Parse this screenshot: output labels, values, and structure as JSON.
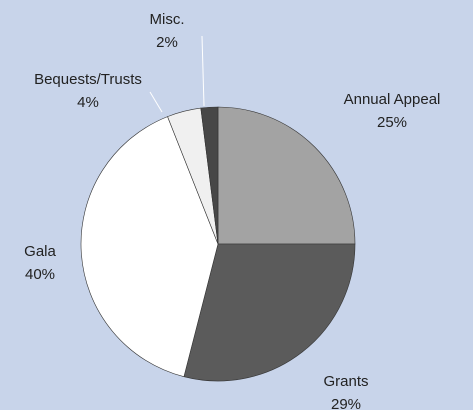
{
  "chart_data": {
    "type": "pie",
    "categories": [
      "Annual Appeal",
      "Grants",
      "Gala",
      "Bequests/Trusts",
      "Misc."
    ],
    "values": [
      25,
      29,
      40,
      4,
      2
    ],
    "value_labels": [
      "25%",
      "29%",
      "40%",
      "4%",
      "2%"
    ],
    "colors": [
      "#a3a3a3",
      "#5b5b5b",
      "#ffffff",
      "#f0f0f0",
      "#474747"
    ]
  }
}
